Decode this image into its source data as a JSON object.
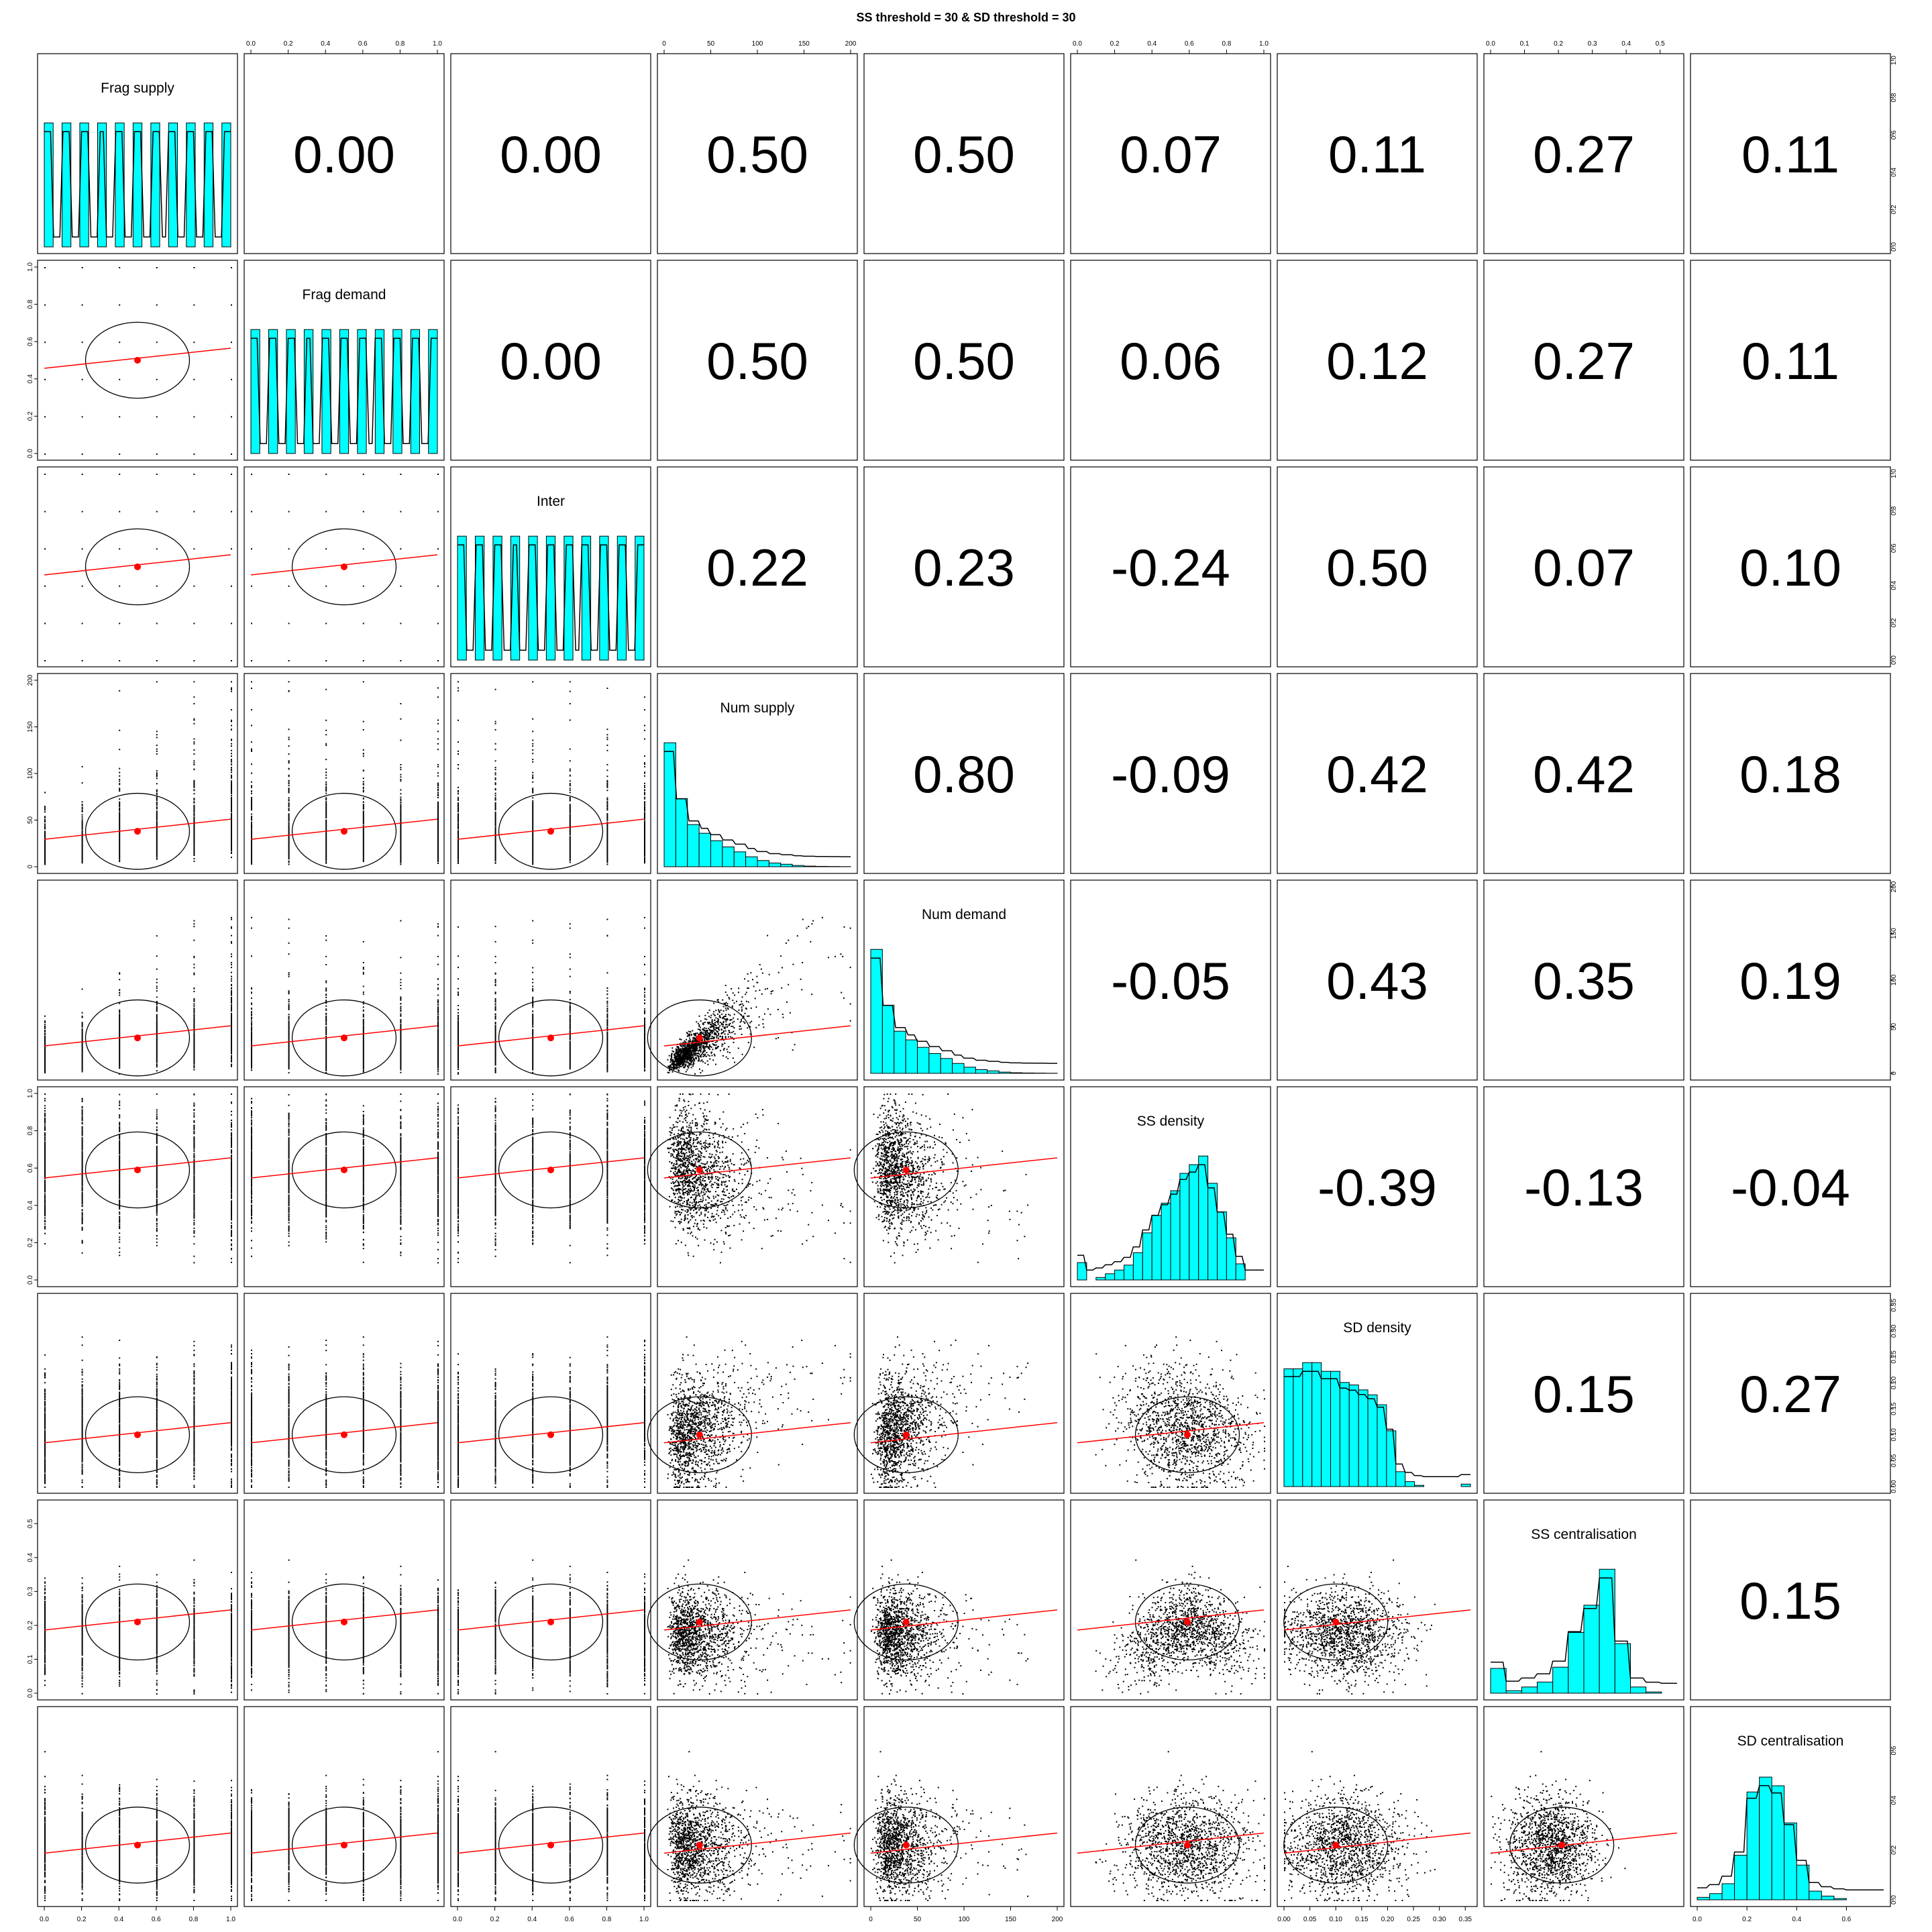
{
  "title": "SS threshold = 30 & SD threshold = 30",
  "chart_data": {
    "type": "scatter",
    "subtype": "pairs-matrix",
    "title": "SS threshold = 30 & SD threshold = 30",
    "variables": [
      "Frag supply",
      "Frag demand",
      "Inter",
      "Num supply",
      "Num demand",
      "SS density",
      "SD density",
      "SS centralisation",
      "SD centralisation"
    ],
    "axis_ticks": [
      [
        "0.0",
        "0.2",
        "0.4",
        "0.6",
        "0.8",
        "1.0"
      ],
      [
        "0.0",
        "0.2",
        "0.4",
        "0.6",
        "0.8",
        "1.0"
      ],
      [
        "0.0",
        "0.2",
        "0.4",
        "0.6",
        "0.8",
        "1.0"
      ],
      [
        "0",
        "50",
        "100",
        "150",
        "200"
      ],
      [
        "0",
        "50",
        "100",
        "150",
        "200"
      ],
      [
        "0.0",
        "0.2",
        "0.4",
        "0.6",
        "0.8",
        "1.0"
      ],
      [
        "0.00",
        "0.05",
        "0.10",
        "0.15",
        "0.20",
        "0.25",
        "0.30",
        "0.35"
      ],
      [
        "0.0",
        "0.1",
        "0.2",
        "0.3",
        "0.4",
        "0.5"
      ],
      [
        "0.0",
        "0.2",
        "0.4",
        "0.6"
      ]
    ],
    "histogram_ticks": {
      "Frag supply": [
        "0.0",
        "0.2",
        "0.4",
        "0.6",
        "0.8",
        "1.0"
      ],
      "Inter": [
        "0.0",
        "0.2",
        "0.4",
        "0.6",
        "0.8",
        "1.0"
      ],
      "Num demand": [
        "0",
        "50",
        "100",
        "150",
        "200"
      ],
      "SD density": [
        "0.00",
        "0.05",
        "0.10",
        "0.15",
        "0.20",
        "0.25",
        "0.30",
        "0.35"
      ],
      "SD centralisation": [
        "0.0",
        "0.2",
        "0.4",
        "0.6"
      ]
    },
    "axis_ranges": [
      [
        0,
        1
      ],
      [
        0,
        1
      ],
      [
        0,
        1
      ],
      [
        0,
        200
      ],
      [
        0,
        200
      ],
      [
        0,
        1
      ],
      [
        0,
        0.36
      ],
      [
        0,
        0.55
      ],
      [
        0,
        0.75
      ]
    ],
    "correlations": [
      [
        "",
        "0.00",
        "0.00",
        "0.50",
        "0.50",
        "0.07",
        "0.11",
        "0.27",
        "0.11"
      ],
      [
        "",
        "",
        "0.00",
        "0.50",
        "0.50",
        "0.06",
        "0.12",
        "0.27",
        "0.11"
      ],
      [
        "",
        "",
        "",
        "0.22",
        "0.23",
        "-0.24",
        "0.50",
        "0.07",
        "0.10"
      ],
      [
        "",
        "",
        "",
        "",
        "0.80",
        "-0.09",
        "0.42",
        "0.42",
        "0.18"
      ],
      [
        "",
        "",
        "",
        "",
        "",
        "-0.05",
        "0.43",
        "0.35",
        "0.19"
      ],
      [
        "",
        "",
        "",
        "",
        "",
        "",
        "-0.39",
        "-0.13",
        "-0.04"
      ],
      [
        "",
        "",
        "",
        "",
        "",
        "",
        "",
        "0.15",
        "0.27"
      ],
      [
        "",
        "",
        "",
        "",
        "",
        "",
        "",
        "",
        "0.15"
      ],
      [
        "",
        "",
        "",
        "",
        "",
        "",
        "",
        "",
        ""
      ]
    ],
    "means": [
      0.5,
      0.5,
      0.5,
      38,
      38,
      0.59,
      0.1,
      0.21,
      0.22
    ],
    "histograms": [
      {
        "variable": "Frag supply",
        "bins": [
          0,
          1
        ],
        "counts": [
          1,
          0,
          1,
          0,
          1,
          0,
          1,
          0,
          1,
          0,
          1,
          0,
          1,
          0,
          1,
          0,
          1,
          0,
          1,
          0,
          1
        ]
      },
      {
        "variable": "Frag demand",
        "bins": [
          0,
          1
        ],
        "counts": [
          1,
          0,
          1,
          0,
          1,
          0,
          1,
          0,
          1,
          0,
          1,
          0,
          1,
          0,
          1,
          0,
          1,
          0,
          1,
          0,
          1
        ]
      },
      {
        "variable": "Inter",
        "bins": [
          0,
          1
        ],
        "counts": [
          1,
          0,
          1,
          0,
          1,
          0,
          1,
          0,
          1,
          0,
          1,
          0,
          1,
          0,
          1,
          0,
          1,
          0,
          1,
          0,
          1
        ]
      },
      {
        "variable": "Num supply",
        "bins": [
          0,
          200
        ],
        "counts": [
          1.0,
          0.55,
          0.34,
          0.27,
          0.21,
          0.16,
          0.12,
          0.08,
          0.05,
          0.03,
          0.02,
          0.01,
          0.005,
          0.003,
          0.002,
          0.001
        ]
      },
      {
        "variable": "Num demand",
        "bins": [
          0,
          200
        ],
        "counts": [
          1.0,
          0.55,
          0.34,
          0.27,
          0.21,
          0.16,
          0.12,
          0.08,
          0.05,
          0.03,
          0.02,
          0.01,
          0.005,
          0.003,
          0.002,
          0.001
        ]
      },
      {
        "variable": "SS density",
        "bins": [
          0,
          1
        ],
        "counts": [
          0.14,
          0.0,
          0.02,
          0.05,
          0.08,
          0.12,
          0.22,
          0.38,
          0.52,
          0.62,
          0.72,
          0.86,
          0.93,
          1.0,
          0.78,
          0.55,
          0.34,
          0.13,
          0.0,
          0.0
        ]
      },
      {
        "variable": "SD density",
        "bins": [
          0,
          0.36
        ],
        "counts": [
          0.95,
          0.95,
          1.0,
          1.0,
          0.93,
          0.93,
          0.84,
          0.82,
          0.78,
          0.74,
          0.66,
          0.45,
          0.12,
          0.04,
          0.01,
          0.0,
          0.0,
          0.0,
          0.0,
          0.02
        ]
      },
      {
        "variable": "SS centralisation",
        "bins": [
          0,
          0.55
        ],
        "counts": [
          0.2,
          0.02,
          0.05,
          0.09,
          0.21,
          0.49,
          0.71,
          1.0,
          0.4,
          0.05,
          0.01,
          0.0
        ]
      },
      {
        "variable": "SD centralisation",
        "bins": [
          0,
          0.75
        ],
        "counts": [
          0.02,
          0.05,
          0.13,
          0.36,
          0.87,
          0.99,
          0.92,
          0.62,
          0.28,
          0.07,
          0.03,
          0.01,
          0.0,
          0.0,
          0.0
        ]
      }
    ],
    "scatter_style": {
      "point_color": "#000000",
      "smooth_color": "#ff0000",
      "ellipse_color": "#000000",
      "mean_color": "#ff0000",
      "histogram_fill": "#00ffff",
      "density_color": "#000000"
    },
    "grid": false,
    "legend": "none"
  }
}
